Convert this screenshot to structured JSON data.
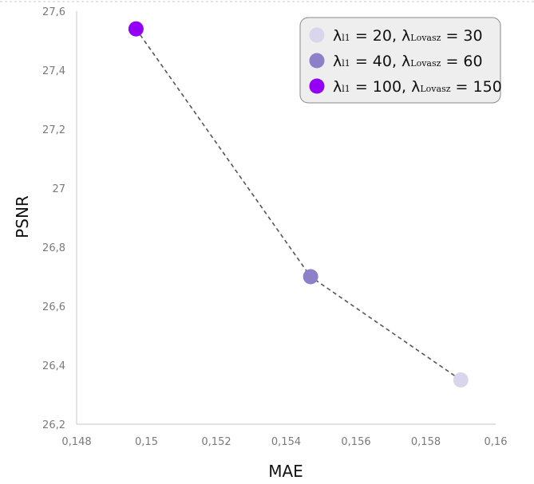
{
  "chart_data": {
    "type": "scatter",
    "xlabel": "MAE",
    "ylabel": "PSNR",
    "xlim": [
      0.148,
      0.16
    ],
    "ylim": [
      26.2,
      27.6
    ],
    "x_ticks": [
      "0,148",
      "0,15",
      "0,152",
      "0,154",
      "0,156",
      "0,158",
      "0,16"
    ],
    "y_ticks": [
      "26,2",
      "26,4",
      "26,6",
      "26,8",
      "27",
      "27,2",
      "27,4",
      "27,6"
    ],
    "x_tick_values": [
      0.148,
      0.15,
      0.152,
      0.154,
      0.156,
      0.158,
      0.16
    ],
    "y_tick_values": [
      26.2,
      26.4,
      26.6,
      26.8,
      27.0,
      27.2,
      27.4,
      27.6
    ],
    "grid": false,
    "connector": "dashed",
    "legend_position": "top-right",
    "series": [
      {
        "name": "λl1 = 100, λLovasz = 150",
        "lambda_l1": "100",
        "lambda_lovasz": "150",
        "x": 0.1497,
        "y": 27.54,
        "color": "#9400f5"
      },
      {
        "name": "λl1 = 40, λLovasz = 60",
        "lambda_l1": "40",
        "lambda_lovasz": "60",
        "x": 0.1547,
        "y": 26.7,
        "color": "#8e80c8"
      },
      {
        "name": "λl1 = 20, λLovasz = 30",
        "lambda_l1": "20",
        "lambda_lovasz": "30",
        "x": 0.159,
        "y": 26.35,
        "color": "#d9d5ec"
      }
    ],
    "legend": [
      {
        "lambda_l1": "20",
        "sep": ",  ",
        "lambda_lovasz": "30",
        "color": "#d9d5ec"
      },
      {
        "lambda_l1": "40",
        "sep": ",  ",
        "lambda_lovasz": "60",
        "color": "#8e80c8"
      },
      {
        "lambda_l1": "100",
        "sep": ", ",
        "lambda_lovasz": "150",
        "color": "#9400f5"
      }
    ],
    "legend_symbols": {
      "lambda": "λ",
      "sub_l1": "l1",
      "sub_lovasz": "Lovasz",
      "eq": " = "
    }
  }
}
